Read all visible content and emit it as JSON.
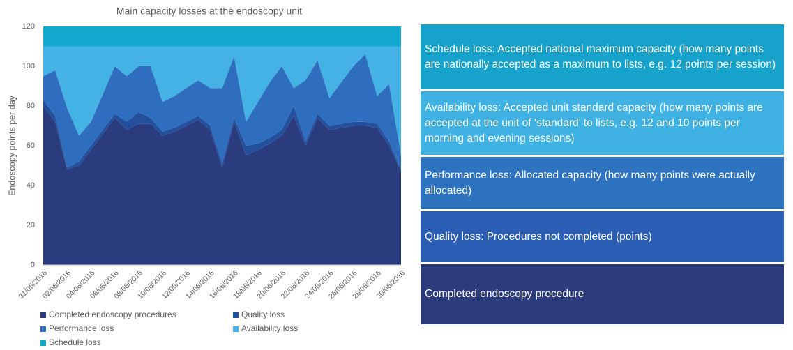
{
  "chart_data": {
    "type": "stacked_area",
    "title": "Main capacity losses at the endoscopy unit",
    "y_label": "Endoscopy points per day",
    "categories": [
      "31/05/2016",
      null,
      "02/06/2016",
      null,
      "04/06/2016",
      null,
      "06/06/2016",
      null,
      "08/06/2016",
      null,
      "10/06/2016",
      null,
      "12/06/2016",
      null,
      "14/06/2016",
      null,
      "16/06/2016",
      null,
      "18/06/2016",
      null,
      "20/06/2016",
      null,
      "22/06/2016",
      null,
      "24/06/2016",
      null,
      "26/06/2016",
      null,
      "28/06/2016",
      null,
      "30/06/2016"
    ],
    "series": [
      {
        "name": "Completed endoscopy procedures",
        "color": "#2b3c7e",
        "values": [
          80,
          72,
          48,
          50,
          58,
          66,
          74,
          68,
          71,
          71,
          65,
          67,
          70,
          73,
          68,
          49,
          72,
          55,
          58,
          61,
          65,
          75,
          60,
          74,
          68,
          69,
          70,
          70,
          69,
          60,
          47
        ]
      },
      {
        "name": "Quality loss",
        "color": "#23509c",
        "values": [
          3,
          3,
          1,
          2,
          2,
          2,
          2,
          4,
          6,
          3,
          2,
          2,
          2,
          2,
          2,
          2,
          2,
          5,
          3,
          3,
          3,
          5,
          2,
          2,
          2,
          2,
          2,
          2,
          2,
          2,
          1
        ]
      },
      {
        "name": "Performance loss",
        "color": "#2f6ebf",
        "values": [
          12,
          23,
          30,
          13,
          12,
          18,
          24,
          23,
          23,
          26,
          15,
          16,
          17,
          18,
          19,
          38,
          31,
          12,
          21,
          28,
          32,
          9,
          31,
          27,
          14,
          21,
          28,
          34,
          14,
          29,
          7
        ]
      },
      {
        "name": "Availability loss",
        "color": "#45b2e5",
        "values": [
          15,
          12,
          31,
          45,
          38,
          24,
          10,
          15,
          10,
          10,
          28,
          25,
          21,
          17,
          21,
          21,
          5,
          38,
          28,
          18,
          10,
          21,
          17,
          7,
          26,
          18,
          10,
          4,
          25,
          19,
          55
        ]
      },
      {
        "name": "Schedule loss",
        "color": "#16a9cf",
        "values": [
          10,
          10,
          10,
          10,
          10,
          10,
          10,
          10,
          10,
          10,
          10,
          10,
          10,
          10,
          10,
          10,
          10,
          10,
          10,
          10,
          10,
          10,
          10,
          10,
          10,
          10,
          10,
          10,
          10,
          10,
          10
        ]
      }
    ],
    "ylim": [
      0,
      120
    ],
    "yticks": [
      0,
      20,
      40,
      60,
      80,
      100,
      120
    ],
    "grid": false
  },
  "explanations": [
    {
      "text": "Schedule loss: Accepted national maximum capacity (how many points are nationally accepted as a maximum to lists, e.g. 12 points per session)",
      "color": "#17a2cb"
    },
    {
      "text": "Availability loss: Accepted unit standard capacity (how many points are accepted at the unit of ‘standard’ to lists, e.g. 12 and 10 points per morning and evening sessions)",
      "color": "#40b1e3"
    },
    {
      "text": "Performance loss: Allocated capacity (how many points were actually allocated)",
      "color": "#2e73c0"
    },
    {
      "text": "Quality loss: Procedures not completed (points)",
      "color": "#2a5db4"
    },
    {
      "text": "Completed endoscopy procedure",
      "color": "#2b3b7c"
    }
  ]
}
